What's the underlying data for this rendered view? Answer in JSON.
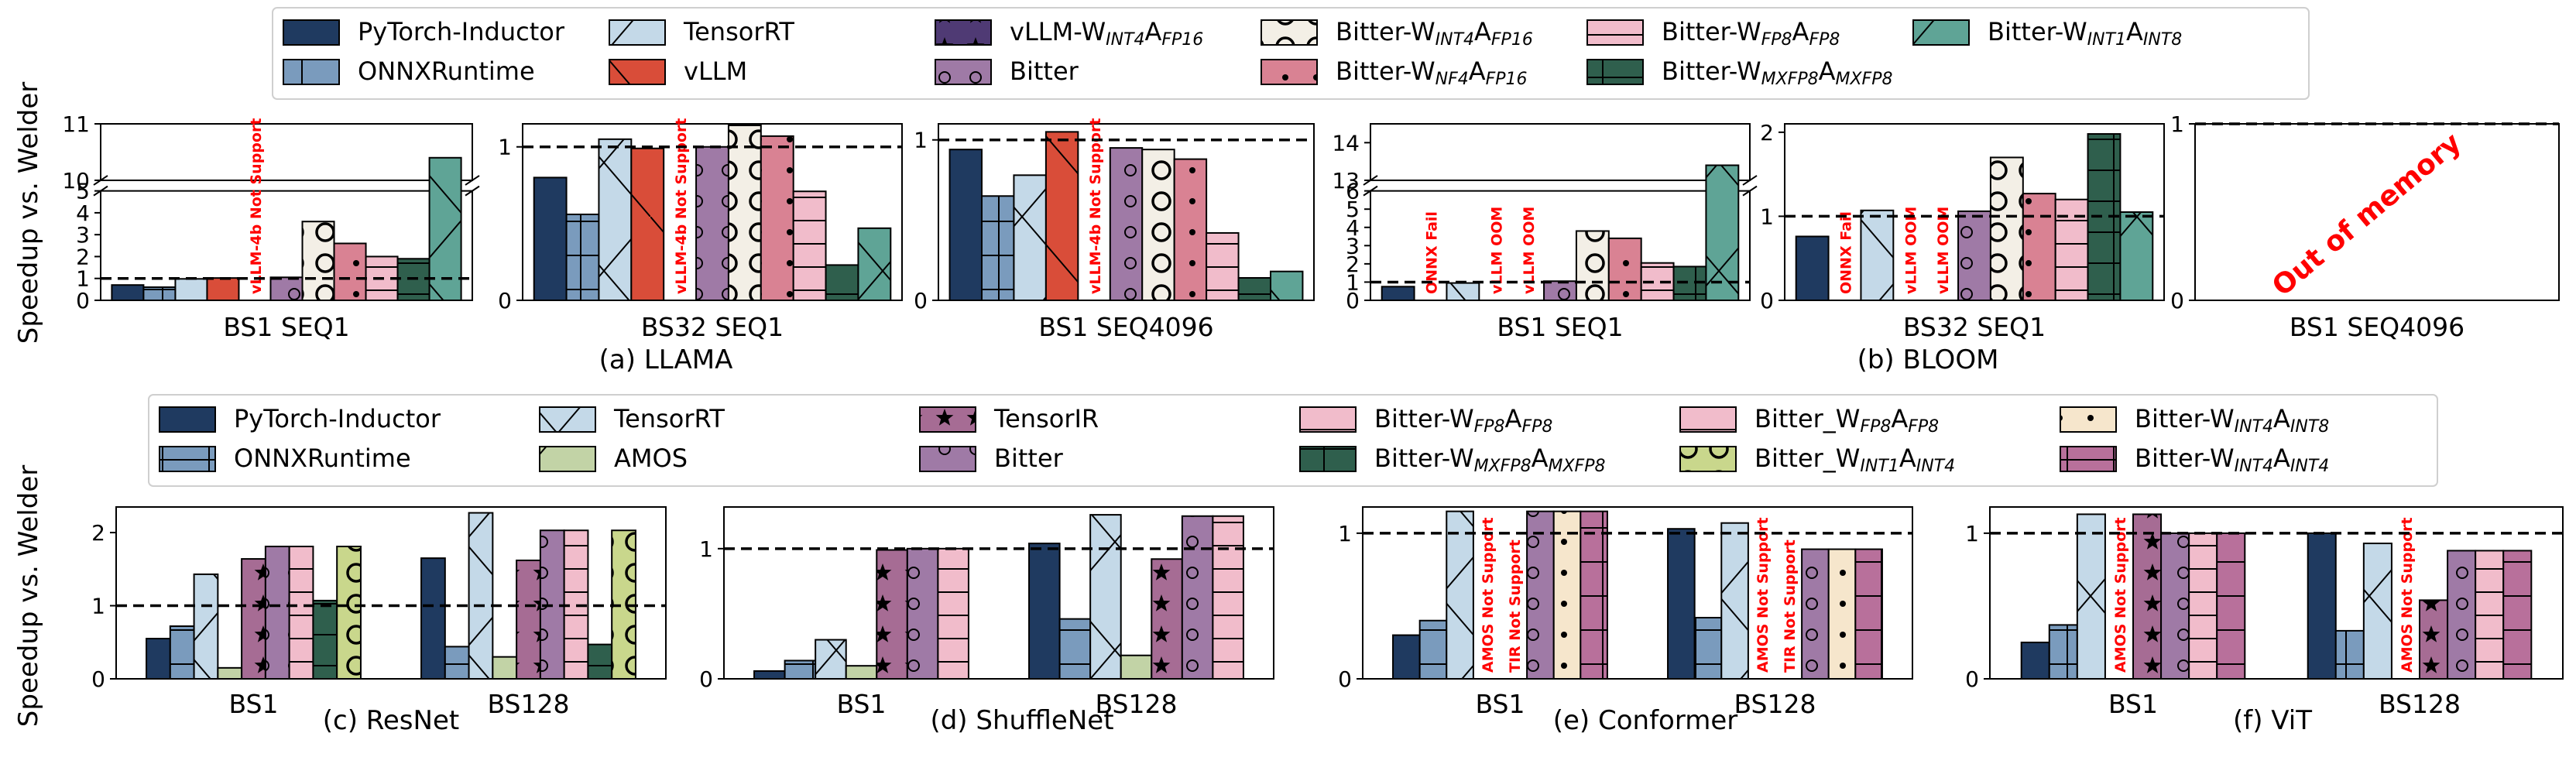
{
  "colors": {
    "PyTorch-Inductor": "#1f3a60",
    "ONNXRuntime": "#7a9bbd",
    "TensorRT": "#c4d9e8",
    "vLLM-W_INT4A_FP16": "#4f3a74",
    "vLLM": "#d94d39",
    "Bitter": "#9f7aa6",
    "Bitter-W_INT4A_FP16": "#f3efe6",
    "Bitter-W_NF4A_FP16": "#d98293",
    "Bitter-W_FP8A_FP8": "#f1bccb",
    "Bitter-W_MXFP8A_MXFP8": "#2f5f4d",
    "Bitter-W_INT1A_INT8": "#5fa496",
    "AMOS": "#c2d3a6",
    "TensorIR": "#a66c94",
    "Bitter_W_FP8A_FP8": "#7a8343",
    "Bitter_W_INT1A_INT4": "#c9d78c",
    "Bitter-W_INT4A_INT8": "#f6e6cc",
    "Bitter-W_INT4A_INT4": "#b8709b"
  },
  "ylabel_top": "Speedup vs. Welder",
  "ylabel_bottom": "Speedup vs. Welder",
  "legend_top": [
    {
      "key": "PyTorch-Inductor",
      "parts": [
        [
          "PyTorch-Inductor",
          ""
        ]
      ]
    },
    {
      "key": "ONNXRuntime",
      "parts": [
        [
          "ONNXRuntime",
          ""
        ]
      ]
    },
    {
      "key": "TensorRT",
      "parts": [
        [
          "TensorRT",
          ""
        ]
      ]
    },
    {
      "key": "vLLM",
      "parts": [
        [
          "vLLM",
          ""
        ]
      ]
    },
    {
      "key": "vLLM-W_INT4A_FP16",
      "parts": [
        [
          "vLLM-W",
          ""
        ],
        [
          "INT4",
          "sub"
        ],
        [
          "A",
          ""
        ],
        [
          "FP16",
          "sub"
        ]
      ]
    },
    {
      "key": "Bitter",
      "parts": [
        [
          "Bitter",
          ""
        ]
      ]
    },
    {
      "key": "Bitter-W_INT4A_FP16",
      "parts": [
        [
          "Bitter-W",
          ""
        ],
        [
          "INT4",
          "sub"
        ],
        [
          "A",
          ""
        ],
        [
          "FP16",
          "sub"
        ]
      ]
    },
    {
      "key": "Bitter-W_NF4A_FP16",
      "parts": [
        [
          "Bitter-W",
          ""
        ],
        [
          "NF4",
          "sub"
        ],
        [
          "A",
          ""
        ],
        [
          "FP16",
          "sub"
        ]
      ]
    },
    {
      "key": "Bitter-W_FP8A_FP8",
      "parts": [
        [
          "Bitter-W",
          ""
        ],
        [
          "FP8",
          "sub"
        ],
        [
          "A",
          ""
        ],
        [
          "FP8",
          "sub"
        ]
      ]
    },
    {
      "key": "Bitter-W_MXFP8A_MXFP8",
      "parts": [
        [
          "Bitter-W",
          ""
        ],
        [
          "MXFP8",
          "sub"
        ],
        [
          "A",
          ""
        ],
        [
          "MXFP8",
          "sub"
        ]
      ]
    },
    {
      "key": "Bitter-W_INT1A_INT8",
      "parts": [
        [
          "Bitter-W",
          ""
        ],
        [
          "INT1",
          "sub"
        ],
        [
          "A",
          ""
        ],
        [
          "INT8",
          "sub"
        ]
      ]
    }
  ],
  "legend_bottom": [
    {
      "key": "PyTorch-Inductor",
      "parts": [
        [
          "PyTorch-Inductor",
          ""
        ]
      ]
    },
    {
      "key": "ONNXRuntime",
      "parts": [
        [
          "ONNXRuntime",
          ""
        ]
      ]
    },
    {
      "key": "TensorRT",
      "parts": [
        [
          "TensorRT",
          ""
        ]
      ]
    },
    {
      "key": "AMOS",
      "parts": [
        [
          "AMOS",
          ""
        ]
      ]
    },
    {
      "key": "TensorIR",
      "parts": [
        [
          "TensorIR",
          ""
        ]
      ]
    },
    {
      "key": "Bitter",
      "parts": [
        [
          "Bitter",
          ""
        ]
      ]
    },
    {
      "key": "Bitter-W_FP8A_FP8",
      "parts": [
        [
          "Bitter-W",
          ""
        ],
        [
          "FP8",
          "sub"
        ],
        [
          "A",
          ""
        ],
        [
          "FP8",
          "sub"
        ]
      ]
    },
    {
      "key": "Bitter-W_MXFP8A_MXFP8",
      "parts": [
        [
          "Bitter-W",
          ""
        ],
        [
          "MXFP8",
          "sub"
        ],
        [
          "A",
          ""
        ],
        [
          "MXFP8",
          "sub"
        ]
      ]
    },
    {
      "key": "Bitter_W_FP8A_FP8",
      "parts": [
        [
          "Bitter_W",
          ""
        ],
        [
          "FP8",
          "sub"
        ],
        [
          "A",
          ""
        ],
        [
          "FP8",
          "sub"
        ]
      ]
    },
    {
      "key": "Bitter_W_INT1A_INT4",
      "parts": [
        [
          "Bitter_W",
          ""
        ],
        [
          "INT1",
          "sub"
        ],
        [
          "A",
          ""
        ],
        [
          "INT4",
          "sub"
        ]
      ]
    },
    {
      "key": "Bitter-W_INT4A_INT8",
      "parts": [
        [
          "Bitter-W",
          ""
        ],
        [
          "INT4",
          "sub"
        ],
        [
          "A",
          ""
        ],
        [
          "INT8",
          "sub"
        ]
      ]
    },
    {
      "key": "Bitter-W_INT4A_INT4",
      "parts": [
        [
          "Bitter-W",
          ""
        ],
        [
          "INT4",
          "sub"
        ],
        [
          "A",
          ""
        ],
        [
          "INT4",
          "sub"
        ]
      ]
    }
  ],
  "chart_data": [
    {
      "type": "bar",
      "group": "(a) LLAMA",
      "xlabel": "BS1 SEQ1",
      "ylim": [
        0,
        11
      ],
      "ybreak": [
        5,
        10
      ],
      "yticks": [
        0,
        1,
        2,
        3,
        4,
        5,
        10,
        11
      ],
      "series_keys": [
        "PyTorch-Inductor",
        "ONNXRuntime",
        "TensorRT",
        "vLLM",
        "vLLM-W_INT4A_FP16",
        "Bitter",
        "Bitter-W_INT4A_FP16",
        "Bitter-W_NF4A_FP16",
        "Bitter-W_FP8A_FP8",
        "Bitter-W_MXFP8A_MXFP8",
        "Bitter-W_INT1A_INT8"
      ],
      "values": [
        0.7,
        0.6,
        0.98,
        1.02,
        0,
        1.05,
        3.6,
        2.6,
        2.0,
        1.9,
        10.4
      ],
      "annotations": [
        {
          "series": "vLLM-W_INT4A_FP16",
          "text": "vLLM-4b Not Support"
        }
      ]
    },
    {
      "type": "bar",
      "group": "(a) LLAMA",
      "xlabel": "BS32 SEQ1",
      "ylim": [
        0,
        1.15
      ],
      "yticks": [
        0,
        1
      ],
      "series_keys": [
        "PyTorch-Inductor",
        "ONNXRuntime",
        "TensorRT",
        "vLLM",
        "vLLM-W_INT4A_FP16",
        "Bitter",
        "Bitter-W_INT4A_FP16",
        "Bitter-W_NF4A_FP16",
        "Bitter-W_FP8A_FP8",
        "Bitter-W_MXFP8A_MXFP8",
        "Bitter-W_INT1A_INT8"
      ],
      "values": [
        0.8,
        0.56,
        1.05,
        0.99,
        0,
        1.0,
        1.14,
        1.07,
        0.71,
        0.23,
        0.47
      ],
      "annotations": [
        {
          "series": "vLLM-W_INT4A_FP16",
          "text": "vLLM-4b Not Support"
        }
      ]
    },
    {
      "type": "bar",
      "group": "(a) LLAMA",
      "xlabel": "BS1 SEQ4096",
      "ylim": [
        0,
        1.1
      ],
      "yticks": [
        0,
        1
      ],
      "series_keys": [
        "PyTorch-Inductor",
        "ONNXRuntime",
        "TensorRT",
        "vLLM",
        "vLLM-W_INT4A_FP16",
        "Bitter",
        "Bitter-W_INT4A_FP16",
        "Bitter-W_NF4A_FP16",
        "Bitter-W_FP8A_FP8",
        "Bitter-W_MXFP8A_MXFP8",
        "Bitter-W_INT1A_INT8"
      ],
      "values": [
        0.94,
        0.65,
        0.78,
        1.05,
        0,
        0.95,
        0.94,
        0.88,
        0.42,
        0.14,
        0.18
      ],
      "annotations": [
        {
          "series": "vLLM-W_INT4A_FP16",
          "text": "vLLM-4b Not Support"
        }
      ]
    },
    {
      "type": "bar",
      "group": "(b) BLOOM",
      "xlabel": "BS1 SEQ1",
      "ylim": [
        0,
        14.5
      ],
      "ybreak": [
        6,
        13
      ],
      "yticks": [
        0,
        1,
        2,
        3,
        4,
        5,
        6,
        13,
        14
      ],
      "series_keys": [
        "PyTorch-Inductor",
        "ONNXRuntime",
        "TensorRT",
        "vLLM",
        "vLLM-W_INT4A_FP16",
        "Bitter",
        "Bitter-W_INT4A_FP16",
        "Bitter-W_NF4A_FP16",
        "Bitter-W_FP8A_FP8",
        "Bitter-W_MXFP8A_MXFP8",
        "Bitter-W_INT1A_INT8"
      ],
      "values": [
        0.75,
        0,
        0.95,
        0,
        0,
        1.05,
        3.8,
        3.4,
        2.05,
        1.85,
        13.4
      ],
      "annotations": [
        {
          "series": "ONNXRuntime",
          "text": "ONNX Fail"
        },
        {
          "series": "vLLM",
          "text": "vLLM OOM"
        },
        {
          "series": "vLLM-W_INT4A_FP16",
          "text": "vLLM OOM"
        }
      ]
    },
    {
      "type": "bar",
      "group": "(b) BLOOM",
      "xlabel": "BS32 SEQ1",
      "ylim": [
        0,
        2.1
      ],
      "yticks": [
        0,
        1,
        2
      ],
      "series_keys": [
        "PyTorch-Inductor",
        "ONNXRuntime",
        "TensorRT",
        "vLLM",
        "vLLM-W_INT4A_FP16",
        "Bitter",
        "Bitter-W_INT4A_FP16",
        "Bitter-W_NF4A_FP16",
        "Bitter-W_FP8A_FP8",
        "Bitter-W_MXFP8A_MXFP8",
        "Bitter-W_INT1A_INT8"
      ],
      "values": [
        0.76,
        0,
        1.07,
        0,
        0,
        1.06,
        1.7,
        1.27,
        1.2,
        1.98,
        1.05
      ],
      "annotations": [
        {
          "series": "ONNXRuntime",
          "text": "ONNX Fail"
        },
        {
          "series": "vLLM",
          "text": "vLLM OOM"
        },
        {
          "series": "vLLM-W_INT4A_FP16",
          "text": "vLLM OOM"
        }
      ]
    },
    {
      "type": "bar",
      "group": "(b) BLOOM",
      "xlabel": "BS1 SEQ4096",
      "ylim": [
        0,
        1
      ],
      "yticks": [
        0,
        1
      ],
      "series_keys": [],
      "values": [],
      "annotations": [
        {
          "text": "Out of memory"
        }
      ]
    },
    {
      "type": "bar",
      "group": "(c) ResNet",
      "categories": [
        "BS1",
        "BS128"
      ],
      "ylim": [
        0,
        2.35
      ],
      "yticks": [
        0,
        1,
        2
      ],
      "series_keys": [
        "PyTorch-Inductor",
        "ONNXRuntime",
        "TensorRT",
        "AMOS",
        "TensorIR",
        "Bitter",
        "Bitter_W_FP8A_FP8",
        "Bitter-W_MXFP8A_MXFP8",
        "Bitter_W_INT1A_INT4"
      ],
      "series": [
        {
          "name": "PyTorch-Inductor",
          "values": [
            0.55,
            1.65
          ]
        },
        {
          "name": "ONNXRuntime",
          "values": [
            0.72,
            0.44
          ]
        },
        {
          "name": "TensorRT",
          "values": [
            1.43,
            2.27
          ]
        },
        {
          "name": "AMOS",
          "values": [
            0.15,
            0.3
          ]
        },
        {
          "name": "TensorIR",
          "values": [
            1.64,
            1.62
          ]
        },
        {
          "name": "Bitter",
          "values": [
            1.81,
            2.03
          ]
        },
        {
          "name": "Bitter_W_FP8A_FP8",
          "values": [
            1.81,
            2.03
          ]
        },
        {
          "name": "Bitter-W_MXFP8A_MXFP8",
          "values": [
            1.07,
            0.47
          ]
        },
        {
          "name": "Bitter_W_INT1A_INT4",
          "values": [
            1.81,
            2.03
          ]
        }
      ],
      "annotations": []
    },
    {
      "type": "bar",
      "group": "(d) ShuffleNet",
      "categories": [
        "BS1",
        "BS128"
      ],
      "ylim": [
        0,
        1.32
      ],
      "yticks": [
        0,
        1
      ],
      "series_keys": [
        "PyTorch-Inductor",
        "ONNXRuntime",
        "TensorRT",
        "AMOS",
        "TensorIR",
        "Bitter",
        "Bitter_W_FP8A_FP8"
      ],
      "series": [
        {
          "name": "PyTorch-Inductor",
          "values": [
            0.06,
            1.04
          ]
        },
        {
          "name": "ONNXRuntime",
          "values": [
            0.14,
            0.46
          ]
        },
        {
          "name": "TensorRT",
          "values": [
            0.3,
            1.26
          ]
        },
        {
          "name": "AMOS",
          "values": [
            0.1,
            0.18
          ]
        },
        {
          "name": "TensorIR",
          "values": [
            0.99,
            0.92
          ]
        },
        {
          "name": "Bitter",
          "values": [
            1.0,
            1.25
          ]
        },
        {
          "name": "Bitter_W_FP8A_FP8",
          "values": [
            1.0,
            1.25
          ]
        }
      ],
      "annotations": []
    },
    {
      "type": "bar",
      "group": "(e) Conformer",
      "categories": [
        "BS1",
        "BS128"
      ],
      "ylim": [
        0,
        1.18
      ],
      "yticks": [
        0,
        1
      ],
      "series_keys": [
        "PyTorch-Inductor",
        "ONNXRuntime",
        "TensorRT",
        "AMOS",
        "TensorIR",
        "Bitter",
        "Bitter-W_INT4A_INT8",
        "Bitter-W_INT4A_INT4"
      ],
      "series": [
        {
          "name": "PyTorch-Inductor",
          "values": [
            0.3,
            1.03
          ]
        },
        {
          "name": "ONNXRuntime",
          "values": [
            0.4,
            0.42
          ]
        },
        {
          "name": "TensorRT",
          "values": [
            1.15,
            1.07
          ]
        },
        {
          "name": "AMOS",
          "values": [
            0,
            0
          ]
        },
        {
          "name": "TensorIR",
          "values": [
            0,
            0
          ]
        },
        {
          "name": "Bitter",
          "values": [
            1.15,
            0.89
          ]
        },
        {
          "name": "Bitter-W_INT4A_INT8",
          "values": [
            1.15,
            0.89
          ]
        },
        {
          "name": "Bitter-W_INT4A_INT4",
          "values": [
            1.15,
            0.89
          ]
        }
      ],
      "annotations": [
        {
          "series": "AMOS",
          "text": "AMOS Not Support"
        },
        {
          "series": "TensorIR",
          "text": "TIR Not Support"
        }
      ]
    },
    {
      "type": "bar",
      "group": "(f) ViT",
      "categories": [
        "BS1",
        "BS128"
      ],
      "ylim": [
        0,
        1.18
      ],
      "yticks": [
        0,
        1
      ],
      "series_keys": [
        "PyTorch-Inductor",
        "ONNXRuntime",
        "TensorRT",
        "AMOS",
        "TensorIR",
        "Bitter",
        "Bitter-W_FP8A_FP8",
        "Bitter-W_INT4A_INT4"
      ],
      "series": [
        {
          "name": "PyTorch-Inductor",
          "values": [
            0.25,
            1.0
          ]
        },
        {
          "name": "ONNXRuntime",
          "values": [
            0.37,
            0.33
          ]
        },
        {
          "name": "TensorRT",
          "values": [
            1.13,
            0.93
          ]
        },
        {
          "name": "AMOS",
          "values": [
            0,
            0
          ]
        },
        {
          "name": "TensorIR",
          "values": [
            1.13,
            0.54
          ]
        },
        {
          "name": "Bitter",
          "values": [
            1.0,
            0.88
          ]
        },
        {
          "name": "Bitter-W_FP8A_FP8",
          "values": [
            1.0,
            0.88
          ]
        },
        {
          "name": "Bitter-W_INT4A_INT4",
          "values": [
            1.0,
            0.88
          ]
        }
      ],
      "annotations": [
        {
          "series": "AMOS",
          "text": "AMOS Not Support"
        }
      ]
    }
  ]
}
